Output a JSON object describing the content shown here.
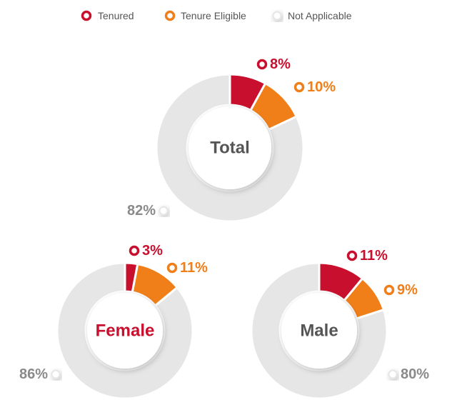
{
  "chart_data": [
    {
      "type": "pie",
      "title": "Total",
      "title_color": "#555555",
      "categories": [
        "Tenured",
        "Tenure Eligible",
        "Not Applicable"
      ],
      "values": [
        8,
        10,
        82
      ],
      "value_labels": [
        "8%",
        "10%",
        "82%"
      ],
      "colors": [
        "#c8102e",
        "#f07f1a",
        "#e6e6e6"
      ]
    },
    {
      "type": "pie",
      "title": "Female",
      "title_color": "#c8102e",
      "categories": [
        "Tenured",
        "Tenure Eligible",
        "Not Applicable"
      ],
      "values": [
        3,
        11,
        86
      ],
      "value_labels": [
        "3%",
        "11%",
        "86%"
      ],
      "colors": [
        "#c8102e",
        "#f07f1a",
        "#e6e6e6"
      ]
    },
    {
      "type": "pie",
      "title": "Male",
      "title_color": "#555555",
      "categories": [
        "Tenured",
        "Tenure Eligible",
        "Not Applicable"
      ],
      "values": [
        11,
        9,
        80
      ],
      "value_labels": [
        "11%",
        "9%",
        "80%"
      ],
      "colors": [
        "#c8102e",
        "#f07f1a",
        "#e6e6e6"
      ]
    }
  ]
}
